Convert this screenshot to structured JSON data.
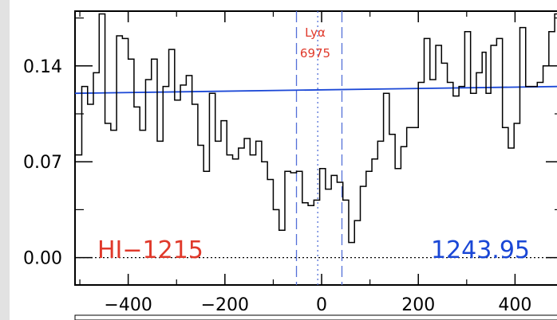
{
  "chart_data": {
    "type": "line",
    "step": true,
    "xlim": [
      -510,
      500
    ],
    "ylim": [
      -0.02,
      0.18
    ],
    "xticks": [
      {
        "value": -400,
        "label": "−400"
      },
      {
        "value": -200,
        "label": "−200"
      },
      {
        "value": 0,
        "label": "0"
      },
      {
        "value": 200,
        "label": "200"
      },
      {
        "value": 400,
        "label": "400"
      }
    ],
    "yticks": [
      {
        "value": 0.0,
        "label": "0.00"
      },
      {
        "value": 0.07,
        "label": "0.07"
      },
      {
        "value": 0.14,
        "label": "0.14"
      }
    ],
    "spectrum": {
      "color": "#000000",
      "x": [
        -510,
        -496,
        -484,
        -472,
        -460,
        -448,
        -436,
        -424,
        -412,
        -400,
        -388,
        -376,
        -364,
        -352,
        -340,
        -328,
        -316,
        -304,
        -292,
        -280,
        -268,
        -256,
        -244,
        -232,
        -220,
        -208,
        -196,
        -184,
        -172,
        -160,
        -148,
        -136,
        -124,
        -112,
        -100,
        -88,
        -76,
        -64,
        -52,
        -40,
        -28,
        -16,
        -4,
        8,
        20,
        32,
        44,
        56,
        68,
        80,
        92,
        104,
        116,
        128,
        140,
        152,
        164,
        176,
        188,
        200,
        212,
        224,
        236,
        248,
        260,
        272,
        284,
        296,
        308,
        320,
        332,
        340,
        350,
        362,
        374,
        386,
        398,
        410,
        422,
        434,
        446,
        458,
        470,
        482,
        494
      ],
      "y": [
        0.075,
        0.125,
        0.112,
        0.135,
        0.178,
        0.098,
        0.093,
        0.162,
        0.16,
        0.145,
        0.11,
        0.093,
        0.13,
        0.145,
        0.085,
        0.125,
        0.152,
        0.115,
        0.126,
        0.133,
        0.112,
        0.082,
        0.063,
        0.12,
        0.085,
        0.1,
        0.075,
        0.072,
        0.08,
        0.087,
        0.075,
        0.085,
        0.07,
        0.057,
        0.035,
        0.02,
        0.063,
        0.062,
        0.063,
        0.04,
        0.038,
        0.042,
        0.065,
        0.05,
        0.06,
        0.055,
        0.042,
        0.011,
        0.027,
        0.052,
        0.063,
        0.072,
        0.085,
        0.12,
        0.09,
        0.065,
        0.081,
        0.095,
        0.095,
        0.128,
        0.16,
        0.13,
        0.155,
        0.142,
        0.128,
        0.118,
        0.125,
        0.165,
        0.12,
        0.135,
        0.15,
        0.12,
        0.155,
        0.16,
        0.095,
        0.08,
        0.098,
        0.168,
        0.125,
        0.125,
        0.128,
        0.14,
        0.165,
        0.178,
        0.17
      ]
    },
    "continuum": {
      "color": "#1a47d6",
      "x": [
        -510,
        500
      ],
      "y": [
        0.12,
        0.125
      ]
    },
    "zero_line": {
      "y": 0.0,
      "style": "dotted"
    },
    "vlines": [
      {
        "x": -52,
        "style": "dashed",
        "color": "#5470d8"
      },
      {
        "x": -8,
        "style": "dotted",
        "color": "#5470d8"
      },
      {
        "x": 42,
        "style": "dashed",
        "color": "#5470d8"
      }
    ],
    "annotations": {
      "line_name": "HI−1215",
      "wavelength": "1243.95",
      "feature_name": "Lyα",
      "feature_value": "6975",
      "red_color": "#e0392b",
      "blue_color": "#1a47d6"
    }
  }
}
